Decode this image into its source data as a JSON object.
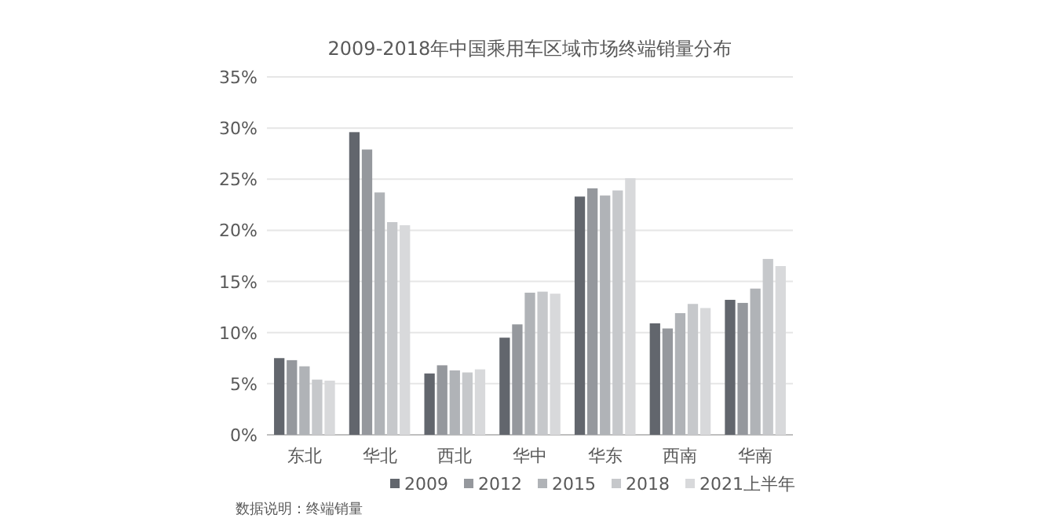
{
  "chart_data": {
    "type": "bar",
    "title": "2009-2018年中国乘用车区域市场终端销量分布",
    "categories": [
      "东北",
      "华北",
      "西北",
      "华中",
      "华东",
      "西南",
      "华南"
    ],
    "series": [
      {
        "name": "2009",
        "color": "#62666d",
        "values": [
          7.5,
          29.6,
          6.0,
          9.5,
          23.3,
          10.9,
          13.2
        ]
      },
      {
        "name": "2012",
        "color": "#95989d",
        "values": [
          7.3,
          27.9,
          6.8,
          10.8,
          24.1,
          10.4,
          12.9
        ]
      },
      {
        "name": "2015",
        "color": "#b0b3b7",
        "values": [
          6.7,
          23.7,
          6.3,
          13.9,
          23.4,
          11.9,
          14.3
        ]
      },
      {
        "name": "2018",
        "color": "#c6c8cb",
        "values": [
          5.4,
          20.8,
          6.1,
          14.0,
          23.9,
          12.8,
          17.2
        ]
      },
      {
        "name": "2021上半年",
        "color": "#d8d9db",
        "values": [
          5.3,
          20.5,
          6.4,
          13.8,
          25.1,
          12.4,
          16.5
        ]
      }
    ],
    "ylim": [
      0,
      35
    ],
    "yticks": [
      {
        "value": 0,
        "label": "0%"
      },
      {
        "value": 5,
        "label": "5%"
      },
      {
        "value": 10,
        "label": "10%"
      },
      {
        "value": 15,
        "label": "15%"
      },
      {
        "value": 20,
        "label": "20%"
      },
      {
        "value": 25,
        "label": "25%"
      },
      {
        "value": 30,
        "label": "30%"
      },
      {
        "value": 35,
        "label": "35%"
      }
    ],
    "grid": "y",
    "legend": "bottom",
    "annotations": [
      "数据说明：终端销量"
    ]
  }
}
